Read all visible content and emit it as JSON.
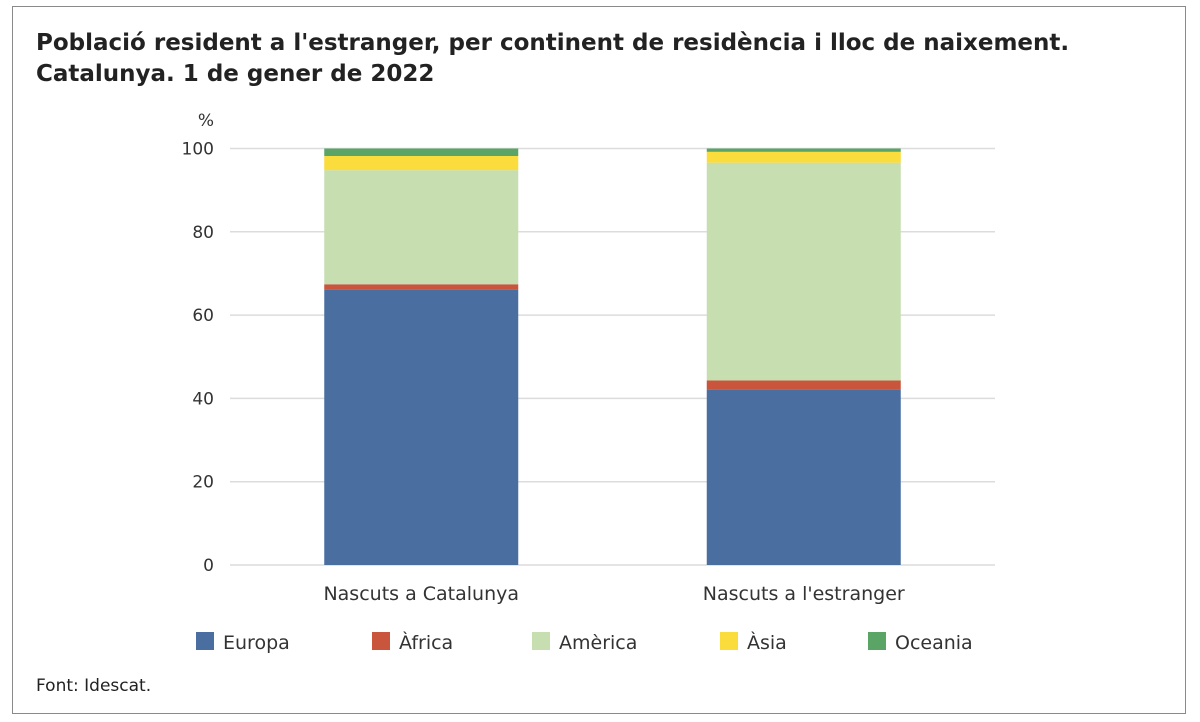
{
  "chart_data": {
    "type": "bar",
    "stacked": true,
    "title": "Població resident a l'estranger, per continent de residència i lloc de naixement.",
    "subtitle": "Catalunya. 1 de gener de 2022",
    "ylabel": "%",
    "ylim": [
      0,
      100
    ],
    "yticks": [
      0,
      20,
      40,
      60,
      80,
      100
    ],
    "grid": true,
    "legend_position": "bottom",
    "categories": [
      "Nascuts a Catalunya",
      "Nascuts a l'estranger"
    ],
    "series": [
      {
        "name": "Europa",
        "color": "#4a6ea0",
        "values": [
          66.2,
          42.2
        ]
      },
      {
        "name": "Àfrica",
        "color": "#c9553c",
        "values": [
          1.2,
          2.1
        ]
      },
      {
        "name": "Amèrica",
        "color": "#c6deb0",
        "values": [
          27.4,
          52.3
        ]
      },
      {
        "name": "Àsia",
        "color": "#fadc3c",
        "values": [
          3.4,
          2.6
        ]
      },
      {
        "name": "Oceania",
        "color": "#5aa566",
        "values": [
          1.8,
          0.8
        ]
      }
    ]
  },
  "source": "Font: Idescat."
}
